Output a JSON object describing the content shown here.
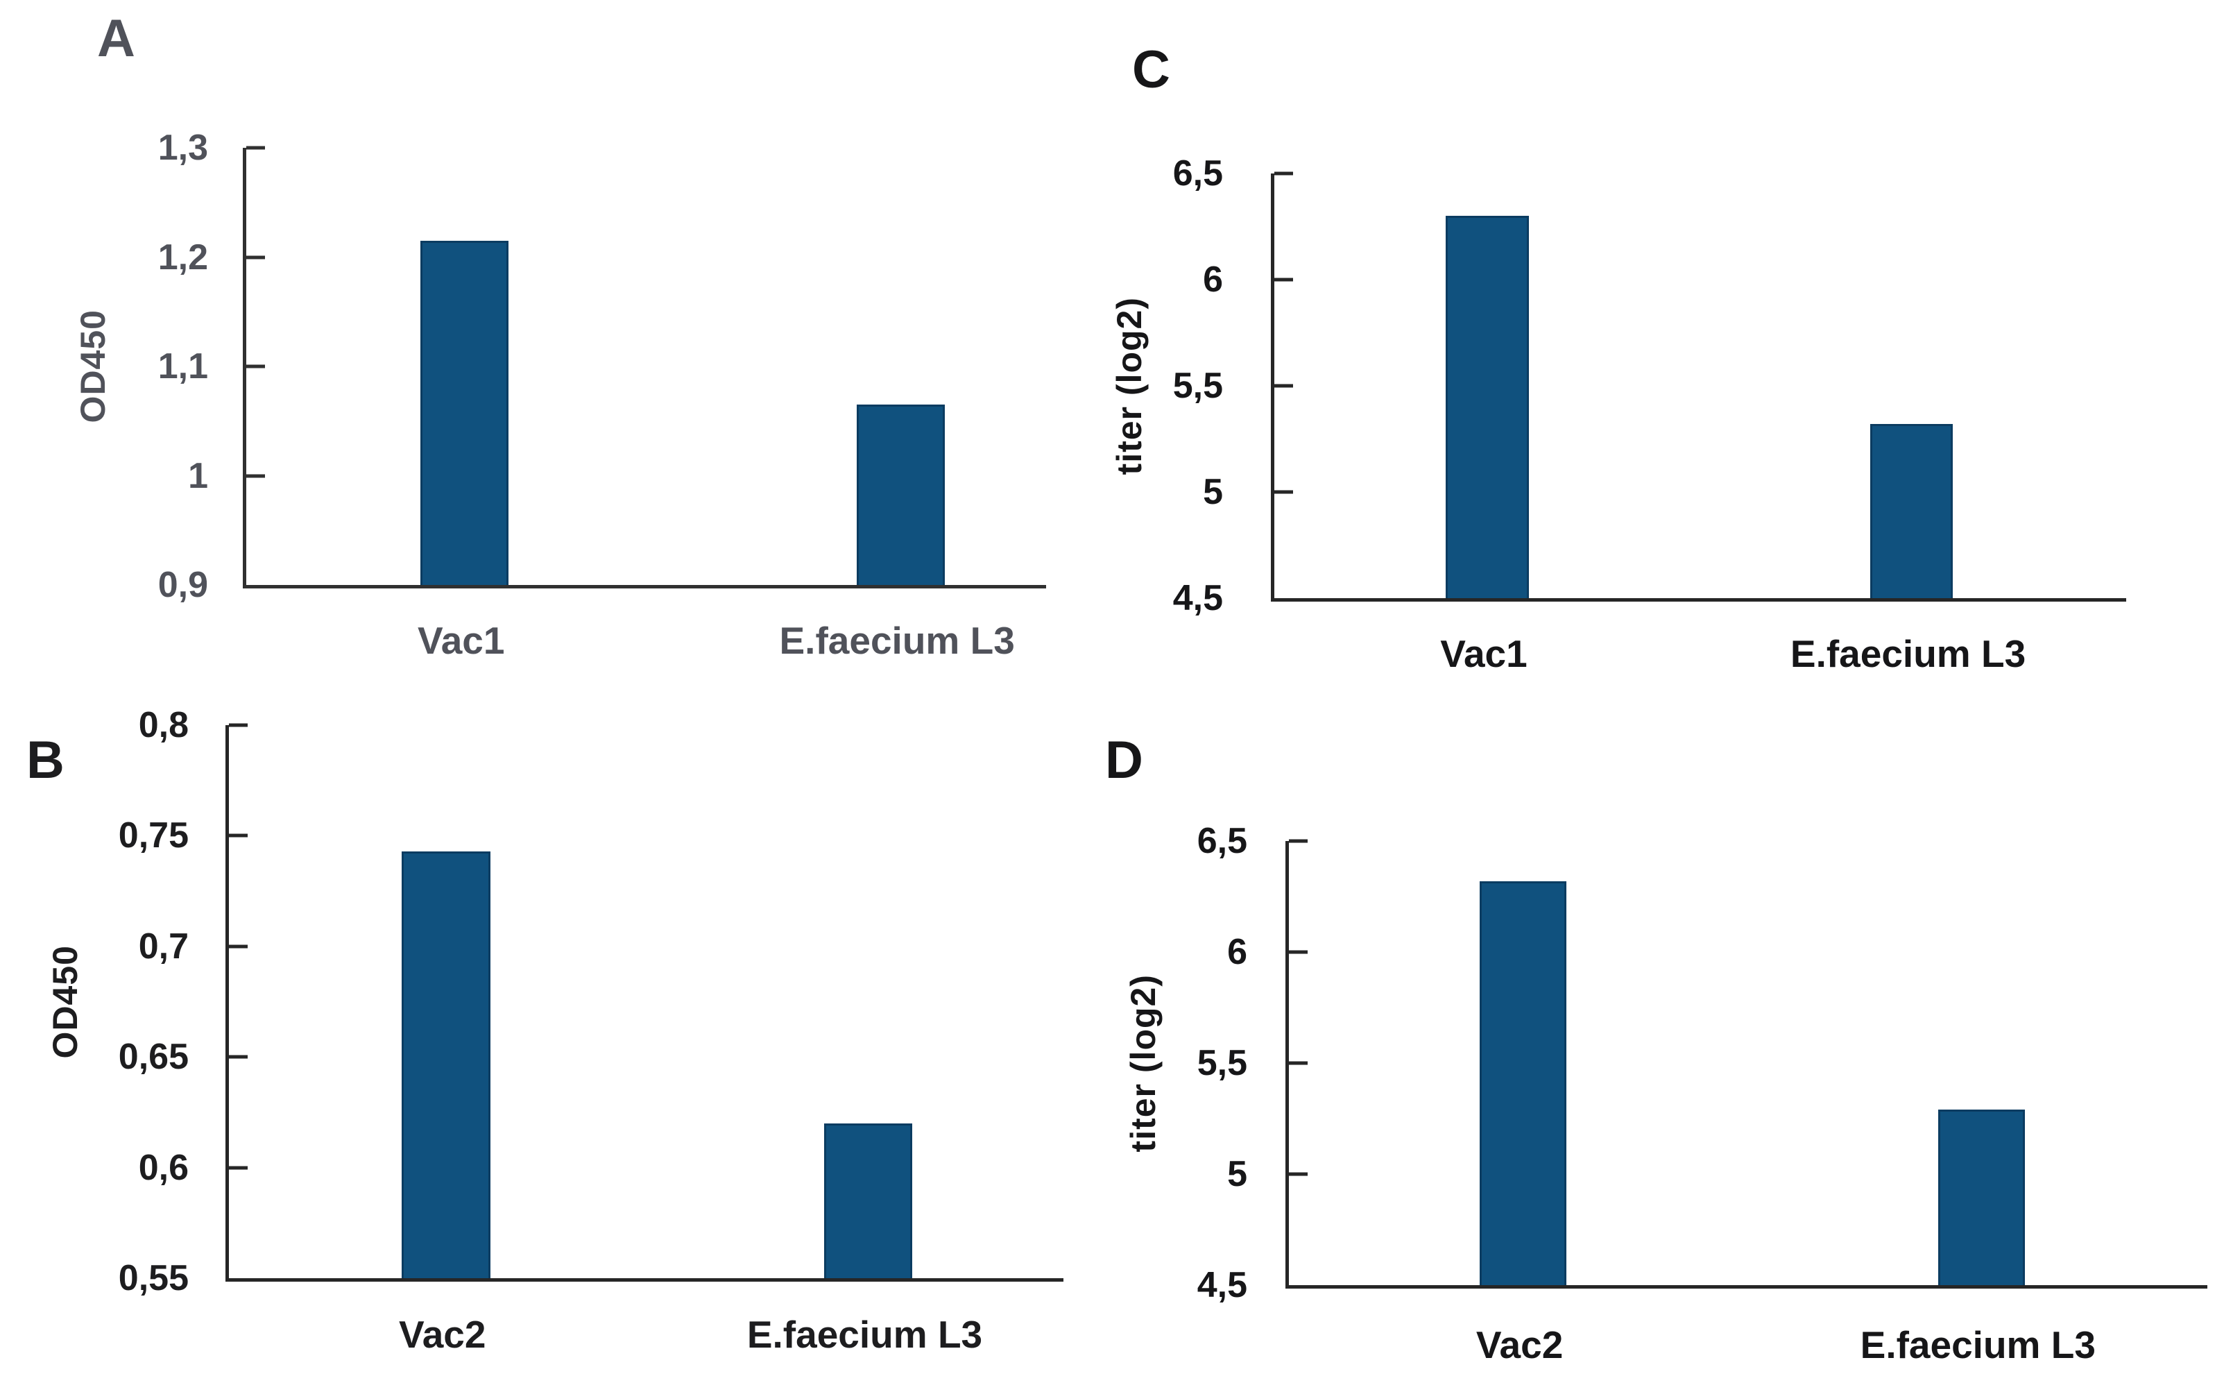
{
  "figure": {
    "background": "#ffffff",
    "bar_fill_color": "#10517e",
    "bar_border_color": "#0b3c61"
  },
  "chart_data": [
    {
      "type": "bar",
      "panel_label": "A",
      "ylabel": "OD450",
      "xlabel": "",
      "ymin": 0.9,
      "ymax": 1.3,
      "ytick_labels": [
        "1,3",
        "1,2",
        "1,1",
        "1",
        "0,9"
      ],
      "ytick_values": [
        1.3,
        1.2,
        1.1,
        1.0,
        0.9
      ],
      "categories": [
        "Vac1",
        "E.faecium L3"
      ],
      "values": [
        1.215,
        1.065
      ],
      "grid": false,
      "legend": false,
      "text_color": "#50525a",
      "axis_color": "#303030",
      "bar_centers_pct": [
        27.3,
        81.8
      ],
      "bar_width_pct": 11.0
    },
    {
      "type": "bar",
      "panel_label": "B",
      "ylabel": "OD450",
      "xlabel": "",
      "ymin": 0.55,
      "ymax": 0.8,
      "ytick_labels": [
        "0,8",
        "0,75",
        "0,7",
        "0,65",
        "0,6",
        "0,55"
      ],
      "ytick_values": [
        0.8,
        0.75,
        0.7,
        0.65,
        0.6,
        0.55
      ],
      "categories": [
        "Vac2",
        "E.faecium L3"
      ],
      "values": [
        0.743,
        0.62
      ],
      "grid": false,
      "legend": false,
      "text_color": "#1d1d1f",
      "axis_color": "#262626",
      "bar_centers_pct": [
        26.0,
        76.6
      ],
      "bar_width_pct": 10.6
    },
    {
      "type": "bar",
      "panel_label": "C",
      "ylabel": "titer (log2)",
      "xlabel": "",
      "ymin": 4.5,
      "ymax": 6.5,
      "ytick_labels": [
        "6,5",
        "6",
        "5,5",
        "5",
        "4,5"
      ],
      "ytick_values": [
        6.5,
        6.0,
        5.5,
        5.0,
        4.5
      ],
      "categories": [
        "Vac1",
        "E.faecium L3"
      ],
      "values": [
        6.3,
        5.32
      ],
      "grid": false,
      "legend": false,
      "text_color": "#161618",
      "axis_color": "#262626",
      "bar_centers_pct": [
        25.0,
        74.8
      ],
      "bar_width_pct": 9.7
    },
    {
      "type": "bar",
      "panel_label": "D",
      "ylabel": "titer (log2)",
      "xlabel": "",
      "ymin": 4.5,
      "ymax": 6.5,
      "ytick_labels": [
        "6,5",
        "6",
        "5,5",
        "5",
        "4,5"
      ],
      "ytick_values": [
        6.5,
        6.0,
        5.5,
        5.0,
        4.5
      ],
      "categories": [
        "Vac2",
        "E.faecium L3"
      ],
      "values": [
        6.32,
        5.29
      ],
      "grid": false,
      "legend": false,
      "text_color": "#161618",
      "axis_color": "#262626",
      "bar_centers_pct": [
        25.5,
        75.4
      ],
      "bar_width_pct": 9.4
    }
  ]
}
